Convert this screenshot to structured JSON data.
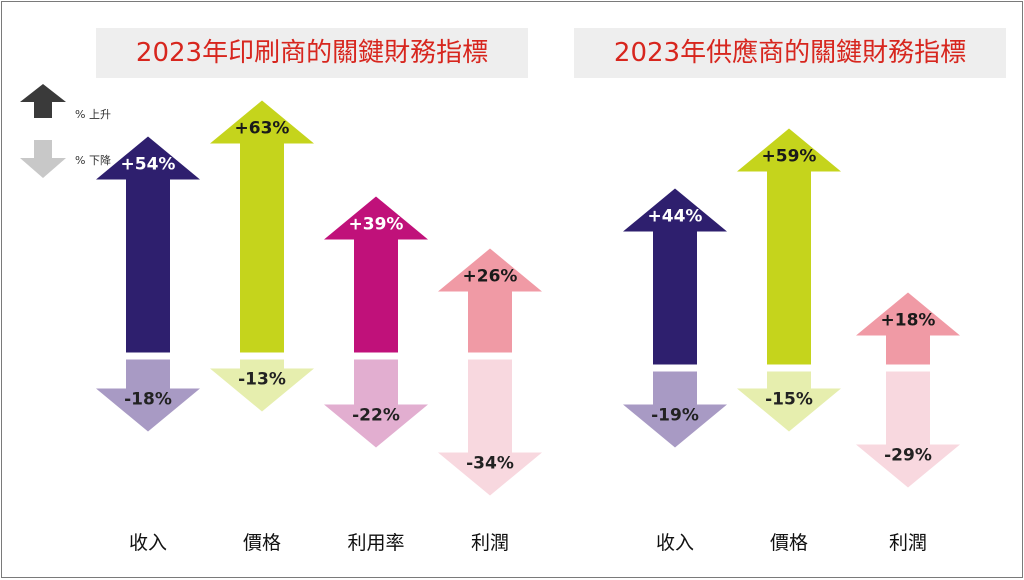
{
  "legend": {
    "up_label": "% 上升",
    "down_label": "% 下降",
    "up_color": "#3a3a3a",
    "down_color": "#c8c8c8"
  },
  "chart_data": [
    {
      "type": "bar",
      "title": "2023年印刷商的關鍵財務指標",
      "categories": [
        "收入",
        "價格",
        "利用率",
        "利潤"
      ],
      "series": [
        {
          "name": "% 上升",
          "values": [
            54,
            63,
            39,
            26
          ],
          "labels": [
            "+54%",
            "+63%",
            "+39%",
            "+26%"
          ]
        },
        {
          "name": "% 下降",
          "values": [
            -18,
            -13,
            -22,
            -34
          ],
          "labels": [
            "-18%",
            "-13%",
            "-22%",
            "-34%"
          ]
        }
      ],
      "colors_up": [
        "#2e1f6e",
        "#c5d41c",
        "#c0117a",
        "#f09aa5"
      ],
      "colors_down": [
        "#a89ac4",
        "#e6eeae",
        "#e2aed0",
        "#f8d8df"
      ]
    },
    {
      "type": "bar",
      "title": "2023年供應商的關鍵財務指標",
      "categories": [
        "收入",
        "價格",
        "利潤"
      ],
      "series": [
        {
          "name": "% 上升",
          "values": [
            44,
            59,
            18
          ],
          "labels": [
            "+44%",
            "+59%",
            "+18%"
          ]
        },
        {
          "name": "% 下降",
          "values": [
            -19,
            -15,
            -29
          ],
          "labels": [
            "-19%",
            "-15%",
            "-29%"
          ]
        }
      ],
      "colors_up": [
        "#2e1f6e",
        "#c5d41c",
        "#f09aa5"
      ],
      "colors_down": [
        "#a89ac4",
        "#e6eeae",
        "#f8d8df"
      ]
    }
  ]
}
